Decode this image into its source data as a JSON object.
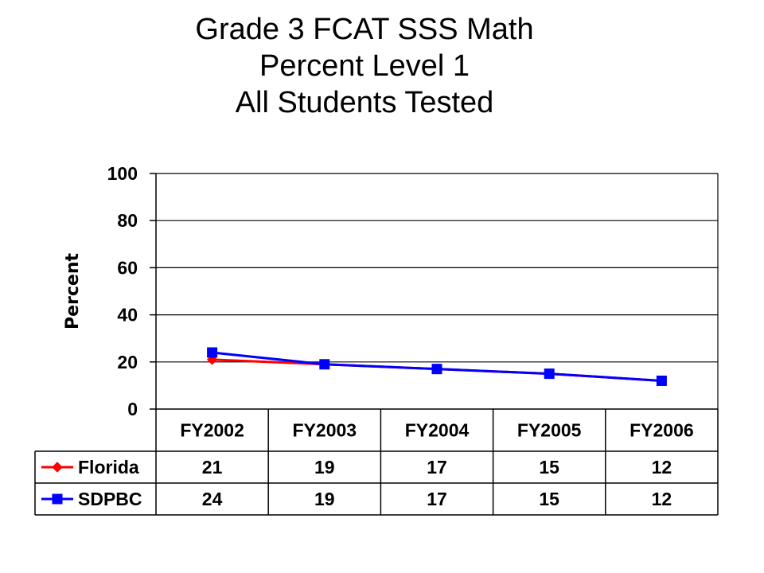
{
  "title_lines": [
    "Grade 3 FCAT SSS Math",
    "Percent Level 1",
    "All Students Tested"
  ],
  "chart_data": {
    "type": "line",
    "title": "Grade 3 FCAT SSS Math Percent Level 1 All Students Tested",
    "xlabel": "",
    "ylabel": "Percent",
    "categories": [
      "FY2002",
      "FY2003",
      "FY2004",
      "FY2005",
      "FY2006"
    ],
    "ylim": [
      0,
      100
    ],
    "yticks": [
      0,
      20,
      40,
      60,
      80,
      100
    ],
    "grid": true,
    "legend": "data-table",
    "series": [
      {
        "name": "Florida",
        "values": [
          21,
          19,
          17,
          15,
          12
        ],
        "color": "#ff0000",
        "marker": "diamond"
      },
      {
        "name": "SDPBC",
        "values": [
          24,
          19,
          17,
          15,
          12
        ],
        "color": "#0000ff",
        "marker": "square"
      }
    ]
  }
}
